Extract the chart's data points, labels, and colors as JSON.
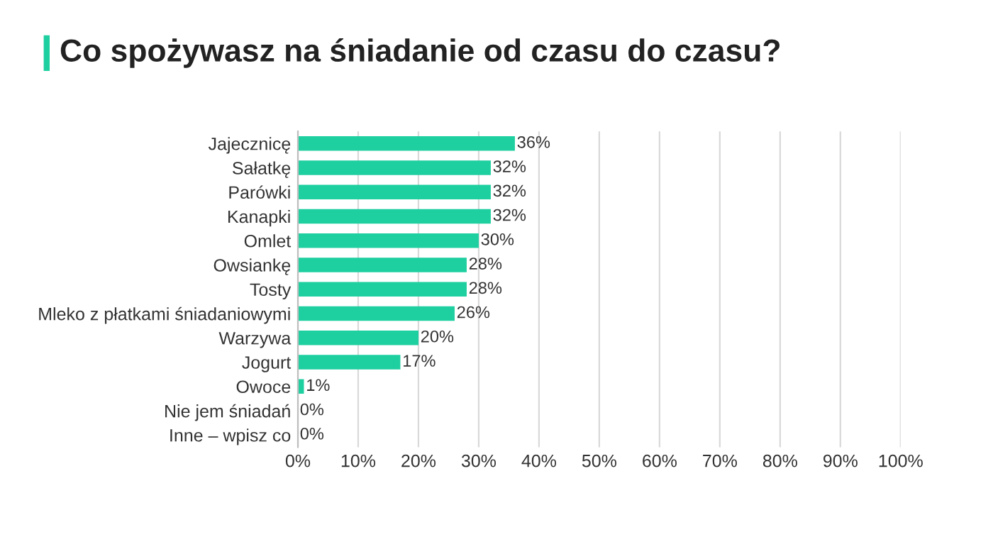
{
  "chart_data": {
    "type": "bar",
    "orientation": "horizontal",
    "title": "Co spożywasz na śniadanie od czasu do czasu?",
    "categories": [
      "Jajecznicę",
      "Sałatkę",
      "Parówki",
      "Kanapki",
      "Omlet",
      "Owsiankę",
      "Tosty",
      "Mleko z płatkami śniadaniowymi",
      "Warzywa",
      "Jogurt",
      "Owoce",
      "Nie jem śniadań",
      "Inne – wpisz co"
    ],
    "values": [
      36,
      32,
      32,
      32,
      30,
      28,
      28,
      26,
      20,
      17,
      1,
      0,
      0
    ],
    "value_labels": [
      "36%",
      "32%",
      "32%",
      "32%",
      "30%",
      "28%",
      "28%",
      "26%",
      "20%",
      "17%",
      "1%",
      "0%",
      "0%"
    ],
    "color": "#1ecfa0",
    "xlim": [
      0,
      100
    ],
    "xticks": [
      {
        "value": 0,
        "label": "0%"
      },
      {
        "value": 10,
        "label": "10%"
      },
      {
        "value": 20,
        "label": "20%"
      },
      {
        "value": 30,
        "label": "30%"
      },
      {
        "value": 40,
        "label": "40%"
      },
      {
        "value": 50,
        "label": "50%"
      },
      {
        "value": 60,
        "label": "60%"
      },
      {
        "value": 70,
        "label": "70%"
      },
      {
        "value": 80,
        "label": "80%"
      },
      {
        "value": 90,
        "label": "90%"
      },
      {
        "value": 100,
        "label": "100%"
      }
    ],
    "grid": "x"
  }
}
